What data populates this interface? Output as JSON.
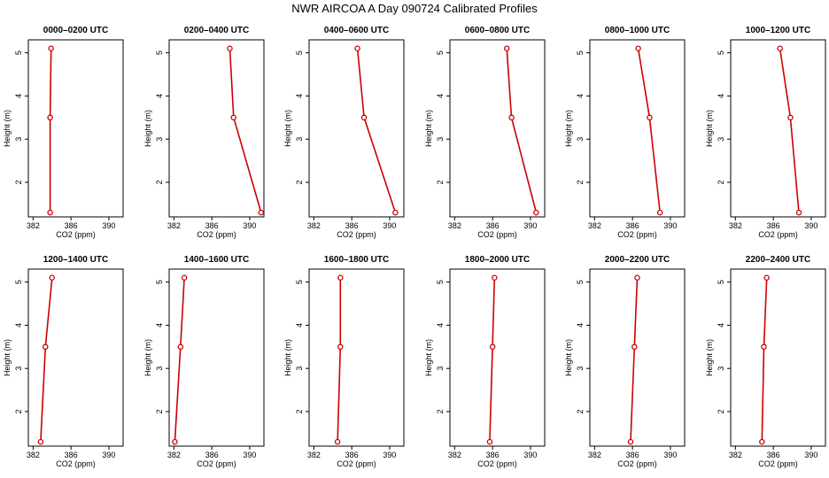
{
  "title": "NWR AIRCOA A  Day 090724  Calibrated Profiles",
  "chart_data": [
    {
      "type": "line",
      "title": "0000–0200 UTC",
      "xlabel": "CO2 (ppm)",
      "ylabel": "Height (m)",
      "xlim": [
        381.5,
        391.5
      ],
      "ylim": [
        1.2,
        5.3
      ],
      "xticks": [
        382,
        386,
        390
      ],
      "yticks": [
        2,
        3,
        4,
        5
      ],
      "series": [
        {
          "color": "#cc0000",
          "x": [
            383.9,
            383.8,
            383.8
          ],
          "y": [
            5.1,
            3.5,
            1.3
          ]
        }
      ]
    },
    {
      "type": "line",
      "title": "0200–0400 UTC",
      "xlabel": "CO2 (ppm)",
      "ylabel": "Height (m)",
      "xlim": [
        381.5,
        391.5
      ],
      "ylim": [
        1.2,
        5.3
      ],
      "xticks": [
        382,
        386,
        390
      ],
      "yticks": [
        2,
        3,
        4,
        5
      ],
      "series": [
        {
          "color": "#cc0000",
          "x": [
            387.9,
            388.3,
            391.2
          ],
          "y": [
            5.1,
            3.5,
            1.3
          ]
        }
      ]
    },
    {
      "type": "line",
      "title": "0400–0600 UTC",
      "xlabel": "CO2 (ppm)",
      "ylabel": "Height (m)",
      "xlim": [
        381.5,
        391.5
      ],
      "ylim": [
        1.2,
        5.3
      ],
      "xticks": [
        382,
        386,
        390
      ],
      "yticks": [
        2,
        3,
        4,
        5
      ],
      "series": [
        {
          "color": "#cc0000",
          "x": [
            386.6,
            387.3,
            390.6
          ],
          "y": [
            5.1,
            3.5,
            1.3
          ]
        }
      ]
    },
    {
      "type": "line",
      "title": "0600–0800 UTC",
      "xlabel": "CO2 (ppm)",
      "ylabel": "Height (m)",
      "xlim": [
        381.5,
        391.5
      ],
      "ylim": [
        1.2,
        5.3
      ],
      "xticks": [
        382,
        386,
        390
      ],
      "yticks": [
        2,
        3,
        4,
        5
      ],
      "series": [
        {
          "color": "#cc0000",
          "x": [
            387.5,
            388.0,
            390.6
          ],
          "y": [
            5.1,
            3.5,
            1.3
          ]
        }
      ]
    },
    {
      "type": "line",
      "title": "0800–1000 UTC",
      "xlabel": "CO2 (ppm)",
      "ylabel": "Height (m)",
      "xlim": [
        381.5,
        391.5
      ],
      "ylim": [
        1.2,
        5.3
      ],
      "xticks": [
        382,
        386,
        390
      ],
      "yticks": [
        2,
        3,
        4,
        5
      ],
      "series": [
        {
          "color": "#cc0000",
          "x": [
            386.6,
            387.8,
            388.9
          ],
          "y": [
            5.1,
            3.5,
            1.3
          ]
        }
      ]
    },
    {
      "type": "line",
      "title": "1000–1200 UTC",
      "xlabel": "CO2 (ppm)",
      "ylabel": "Height (m)",
      "xlim": [
        381.5,
        391.5
      ],
      "ylim": [
        1.2,
        5.3
      ],
      "xticks": [
        382,
        386,
        390
      ],
      "yticks": [
        2,
        3,
        4,
        5
      ],
      "series": [
        {
          "color": "#cc0000",
          "x": [
            386.7,
            387.8,
            388.7
          ],
          "y": [
            5.1,
            3.5,
            1.3
          ]
        }
      ]
    },
    {
      "type": "line",
      "title": "1200–1400 UTC",
      "xlabel": "CO2 (ppm)",
      "ylabel": "Height (m)",
      "xlim": [
        381.5,
        391.5
      ],
      "ylim": [
        1.2,
        5.3
      ],
      "xticks": [
        382,
        386,
        390
      ],
      "yticks": [
        2,
        3,
        4,
        5
      ],
      "series": [
        {
          "color": "#cc0000",
          "x": [
            384.0,
            383.3,
            382.8
          ],
          "y": [
            5.1,
            3.5,
            1.3
          ]
        }
      ]
    },
    {
      "type": "line",
      "title": "1400–1600 UTC",
      "xlabel": "CO2 (ppm)",
      "ylabel": "Height (m)",
      "xlim": [
        381.5,
        391.5
      ],
      "ylim": [
        1.2,
        5.3
      ],
      "xticks": [
        382,
        386,
        390
      ],
      "yticks": [
        2,
        3,
        4,
        5
      ],
      "series": [
        {
          "color": "#cc0000",
          "x": [
            383.1,
            382.7,
            382.1
          ],
          "y": [
            5.1,
            3.5,
            1.3
          ]
        }
      ]
    },
    {
      "type": "line",
      "title": "1600–1800 UTC",
      "xlabel": "CO2 (ppm)",
      "ylabel": "Height (m)",
      "xlim": [
        381.5,
        391.5
      ],
      "ylim": [
        1.2,
        5.3
      ],
      "xticks": [
        382,
        386,
        390
      ],
      "yticks": [
        2,
        3,
        4,
        5
      ],
      "series": [
        {
          "color": "#cc0000",
          "x": [
            384.8,
            384.8,
            384.5
          ],
          "y": [
            5.1,
            3.5,
            1.3
          ]
        }
      ]
    },
    {
      "type": "line",
      "title": "1800–2000 UTC",
      "xlabel": "CO2 (ppm)",
      "ylabel": "Height (m)",
      "xlim": [
        381.5,
        391.5
      ],
      "ylim": [
        1.2,
        5.3
      ],
      "xticks": [
        382,
        386,
        390
      ],
      "yticks": [
        2,
        3,
        4,
        5
      ],
      "series": [
        {
          "color": "#cc0000",
          "x": [
            386.2,
            386.0,
            385.7
          ],
          "y": [
            5.1,
            3.5,
            1.3
          ]
        }
      ]
    },
    {
      "type": "line",
      "title": "2000–2200 UTC",
      "xlabel": "CO2 (ppm)",
      "ylabel": "Height (m)",
      "xlim": [
        381.5,
        391.5
      ],
      "ylim": [
        1.2,
        5.3
      ],
      "xticks": [
        382,
        386,
        390
      ],
      "yticks": [
        2,
        3,
        4,
        5
      ],
      "series": [
        {
          "color": "#cc0000",
          "x": [
            386.5,
            386.2,
            385.8
          ],
          "y": [
            5.1,
            3.5,
            1.3
          ]
        }
      ]
    },
    {
      "type": "line",
      "title": "2200–2400 UTC",
      "xlabel": "CO2 (ppm)",
      "ylabel": "Height (m)",
      "xlim": [
        381.5,
        391.5
      ],
      "ylim": [
        1.2,
        5.3
      ],
      "xticks": [
        382,
        386,
        390
      ],
      "yticks": [
        2,
        3,
        4,
        5
      ],
      "series": [
        {
          "color": "#cc0000",
          "x": [
            385.3,
            385.0,
            384.8
          ],
          "y": [
            5.1,
            3.5,
            1.3
          ]
        }
      ]
    }
  ]
}
